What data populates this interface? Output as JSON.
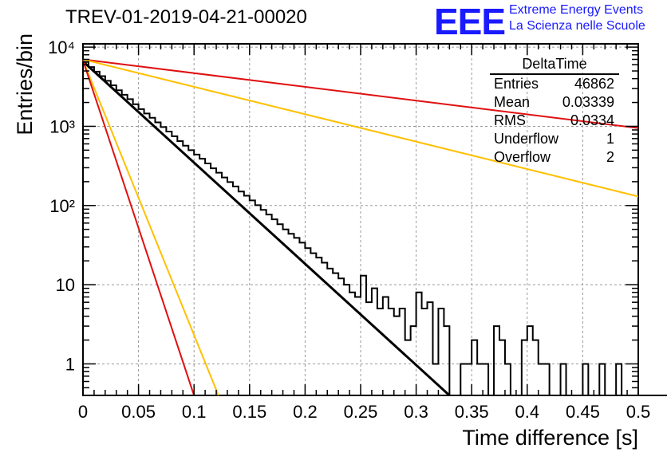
{
  "header": {
    "title": "TREV-01-2019-04-21-00020",
    "logo_text": "EEE",
    "logo_line1": "Extreme Energy Events",
    "logo_line2": "La Scienza nelle Scuole"
  },
  "stats_box": {
    "title": "DeltaTime",
    "rows": [
      {
        "label": "Entries",
        "value": "46862"
      },
      {
        "label": "Mean",
        "value": "0.03339"
      },
      {
        "label": "RMS",
        "value": "0.0334"
      },
      {
        "label": "Underflow",
        "value": "1"
      },
      {
        "label": "Overflow",
        "value": "2"
      }
    ]
  },
  "chart_data": {
    "type": "histogram",
    "title": "TREV-01-2019-04-21-00020",
    "xlabel": "Time difference [s]",
    "ylabel": "Entries/bin",
    "xlim": [
      0,
      0.5
    ],
    "ylim": [
      0.4,
      11000
    ],
    "y_scale": "log",
    "grid": true,
    "x_ticks": [
      0,
      0.05,
      0.1,
      0.15,
      0.2,
      0.25,
      0.3,
      0.35,
      0.4,
      0.45,
      0.5
    ],
    "x_tick_labels": [
      "0",
      "0.05",
      "0.1",
      "0.15",
      "0.2",
      "0.25",
      "0.3",
      "0.35",
      "0.4",
      "0.45",
      "0.5"
    ],
    "y_ticks": [
      1,
      10,
      100,
      1000,
      10000
    ],
    "y_tick_labels": [
      "1",
      "10",
      "10²",
      "10³",
      "10⁴"
    ],
    "bin_width": 0.005,
    "bin_start": 0,
    "histogram_counts": [
      6500,
      5600,
      4900,
      4300,
      3750,
      3300,
      2850,
      2500,
      2200,
      1900,
      1650,
      1450,
      1280,
      1120,
      980,
      860,
      750,
      650,
      570,
      500,
      440,
      390,
      340,
      295,
      260,
      226,
      198,
      174,
      150,
      133,
      116,
      101,
      88,
      77,
      67,
      58,
      50,
      44,
      39,
      34,
      29,
      25,
      22,
      19,
      16,
      14,
      12,
      10,
      8,
      7,
      13,
      6,
      9,
      5,
      7,
      5,
      4,
      5,
      2,
      3,
      8,
      5,
      6,
      1,
      5,
      3,
      0,
      0,
      1,
      1,
      2,
      1,
      1,
      0,
      3,
      2,
      1,
      0,
      0,
      2,
      3,
      2,
      1,
      1,
      0,
      0,
      1,
      0,
      0,
      0,
      1,
      0,
      0,
      1,
      0,
      0,
      1,
      0,
      0,
      0,
      0,
      0,
      0,
      0,
      0,
      0,
      0,
      0,
      0,
      0,
      0,
      0,
      0,
      0,
      0,
      0,
      0,
      0,
      0,
      0
    ],
    "fits": [
      {
        "color": "#000000",
        "y0": 6600,
        "x_end": 0.33,
        "y_end": 0.4
      },
      {
        "color": "#e01010",
        "y0": 7000,
        "x_end": 0.5,
        "y_end": 950
      },
      {
        "color": "#ffc000",
        "y0": 7000,
        "x_end": 0.5,
        "y_end": 130
      },
      {
        "color": "#ffc000",
        "y0": 6800,
        "x_end": 0.122,
        "y_end": 0.4
      },
      {
        "color": "#e01010",
        "y0": 6800,
        "x_end": 0.1,
        "y_end": 0.4
      }
    ]
  }
}
